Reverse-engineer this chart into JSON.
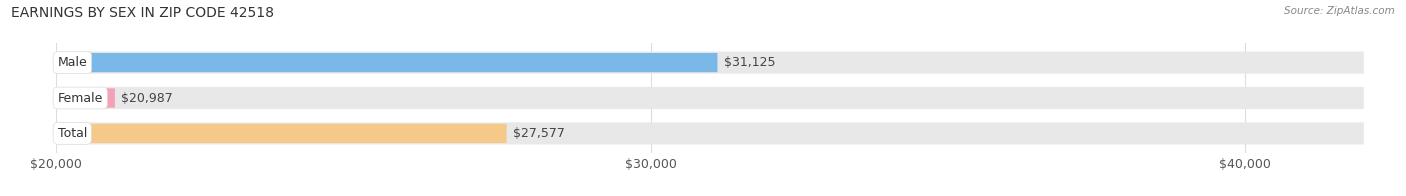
{
  "title": "EARNINGS BY SEX IN ZIP CODE 42518",
  "source": "Source: ZipAtlas.com",
  "categories": [
    "Male",
    "Female",
    "Total"
  ],
  "values": [
    31125,
    20987,
    27577
  ],
  "xlim_min": 20000,
  "xlim_max": 42000,
  "bar_colors": [
    "#7ab8e8",
    "#f4a0b5",
    "#f5c98a"
  ],
  "bar_labels": [
    "$31,125",
    "$20,987",
    "$27,577"
  ],
  "x_ticks": [
    20000,
    30000,
    40000
  ],
  "x_tick_labels": [
    "$20,000",
    "$30,000",
    "$40,000"
  ],
  "bg_color": "#f7f7f7",
  "bar_bg_color": "#e8e8e8",
  "title_fontsize": 10,
  "tick_fontsize": 9,
  "label_fontsize": 9,
  "bar_height": 0.52
}
